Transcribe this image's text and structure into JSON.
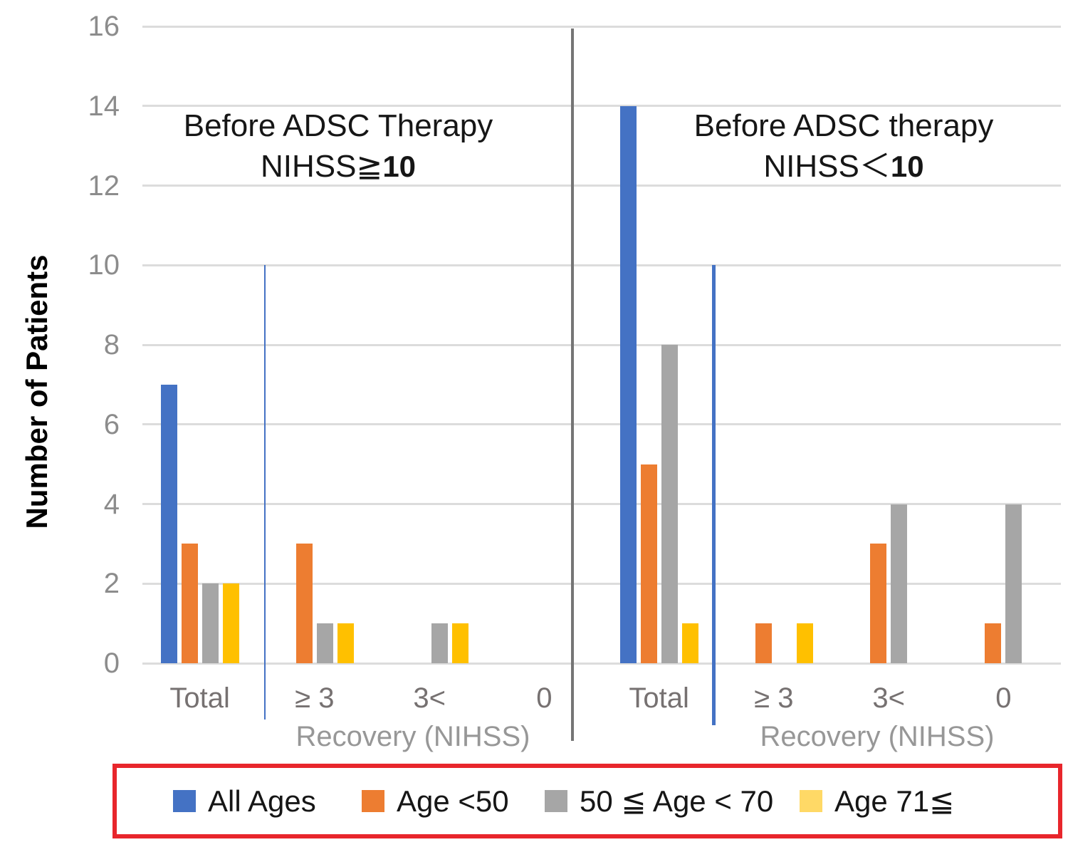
{
  "chart_data": {
    "type": "bar",
    "ylabel": "Number of Patients",
    "ylim": [
      0,
      16
    ],
    "ytick_step": 2,
    "yticks": [
      0,
      2,
      4,
      6,
      8,
      10,
      12,
      14,
      16
    ],
    "grid": "horizontal",
    "categories": [
      "Total",
      "≥ 3",
      "3<",
      "0"
    ],
    "panels": [
      {
        "title": "Before ADSC Therapy",
        "subtitle_prefix": "NIHSS≧",
        "subtitle_number": "10",
        "xlabel": "Recovery (NIHSS)",
        "series": [
          {
            "name": "All Ages",
            "values": [
              7,
              0,
              0,
              0
            ]
          },
          {
            "name": "Age <50",
            "values": [
              3,
              3,
              0,
              0
            ]
          },
          {
            "name": "50 ≦ Age < 70",
            "values": [
              2,
              1,
              1,
              0
            ]
          },
          {
            "name": "Age 71≦",
            "values": [
              2,
              1,
              1,
              0
            ]
          }
        ]
      },
      {
        "title": "Before ADSC therapy",
        "subtitle_prefix": "NIHSS＜",
        "subtitle_number": "10",
        "xlabel": "Recovery (NIHSS)",
        "series": [
          {
            "name": "All Ages",
            "values": [
              14,
              0,
              0,
              0
            ]
          },
          {
            "name": "Age <50",
            "values": [
              5,
              1,
              3,
              1
            ]
          },
          {
            "name": "50 ≦ Age < 70",
            "values": [
              8,
              0,
              4,
              4
            ]
          },
          {
            "name": "Age 71≦",
            "values": [
              1,
              1,
              0,
              0
            ]
          }
        ]
      }
    ],
    "series_colors": {
      "All Ages": "#4472C4",
      "Age <50": "#ED7D31",
      "50 ≦ Age < 70": "#A6A6A6",
      "Age 71≦": "#FFC000"
    },
    "legend": {
      "position": "bottom",
      "border_color": "#E8262C",
      "entries": [
        {
          "label": "All Ages",
          "swatch_color": "#4472C4"
        },
        {
          "label": "Age <50",
          "swatch_color": "#ED7D31"
        },
        {
          "label": "50 ≦ Age < 70",
          "swatch_color": "#A6A6A6"
        },
        {
          "label": "Age 71≦",
          "swatch_color": "#FFD966"
        }
      ]
    },
    "annotations": {
      "threshold_value": 10,
      "threshold_line_color": "#4472C4",
      "panel_divider_color": "#757575"
    },
    "colors": {
      "gridline": "#DCDCDC",
      "tick_label": "#8C8C8C",
      "category_label": "#767171",
      "title_text": "#161616"
    }
  }
}
